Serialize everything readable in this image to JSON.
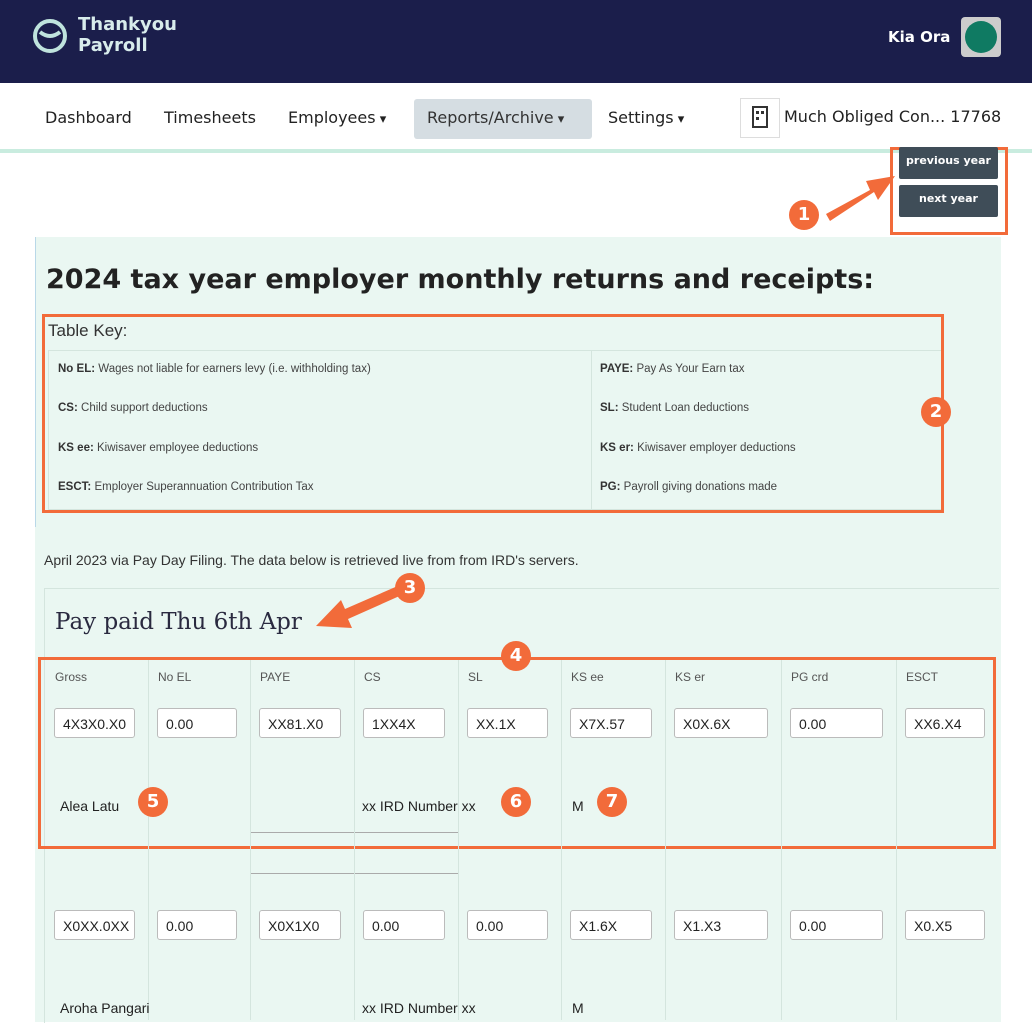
{
  "header": {
    "brand_line1": "Thankyou",
    "brand_line2": "Payroll",
    "user": "Kia Ora"
  },
  "nav": {
    "items": [
      "Dashboard",
      "Timesheets",
      "Employees",
      "Reports/Archive",
      "Settings"
    ],
    "company": "Much Obliged Con... 17768"
  },
  "year_buttons": [
    "previous year",
    "next year"
  ],
  "callouts": [
    "1",
    "2",
    "3",
    "4",
    "5",
    "6",
    "7"
  ],
  "heading": "2024 tax year employer monthly returns and receipts:",
  "table_key": {
    "title": "Table Key:",
    "rows": [
      [
        {
          "term": "No EL:",
          "desc": "Wages not liable for earners levy (i.e. withholding tax)"
        },
        {
          "term": "PAYE:",
          "desc": "Pay As Your Earn tax"
        }
      ],
      [
        {
          "term": "CS:",
          "desc": "Child support deductions"
        },
        {
          "term": "SL:",
          "desc": "Student Loan deductions"
        }
      ],
      [
        {
          "term": "KS ee:",
          "desc": "Kiwisaver employee deductions"
        },
        {
          "term": "KS er:",
          "desc": "Kiwisaver employer deductions"
        }
      ],
      [
        {
          "term": "ESCT:",
          "desc": "Employer Superannuation Contribution Tax"
        },
        {
          "term": "PG:",
          "desc": "Payroll giving donations made"
        }
      ]
    ]
  },
  "intro": "April 2023 via Pay Day Filing. The data below is retrieved live from from IRD's servers.",
  "pay_heading": "Pay paid Thu 6th Apr",
  "columns": [
    "Gross",
    "No EL",
    "PAYE",
    "CS",
    "SL",
    "KS ee",
    "KS er",
    "PG crd",
    "ESCT"
  ],
  "employees": [
    {
      "values": [
        "4X3X0.X0",
        "0.00",
        "XX81.X0",
        "1XX4X",
        "XX.1X",
        "X7X.57",
        "X0X.6X",
        "0.00",
        "XX6.X4"
      ],
      "name": "Alea Latu",
      "ird": "xx IRD Number xx",
      "code": "M"
    },
    {
      "values": [
        "X0XX.0XX",
        "0.00",
        "X0X1X0",
        "0.00",
        "0.00",
        "X1.6X",
        "X1.X3",
        "0.00",
        "X0.X5"
      ],
      "name": "Aroha Pangari",
      "ird": "xx IRD Number xx",
      "code": "M"
    }
  ]
}
